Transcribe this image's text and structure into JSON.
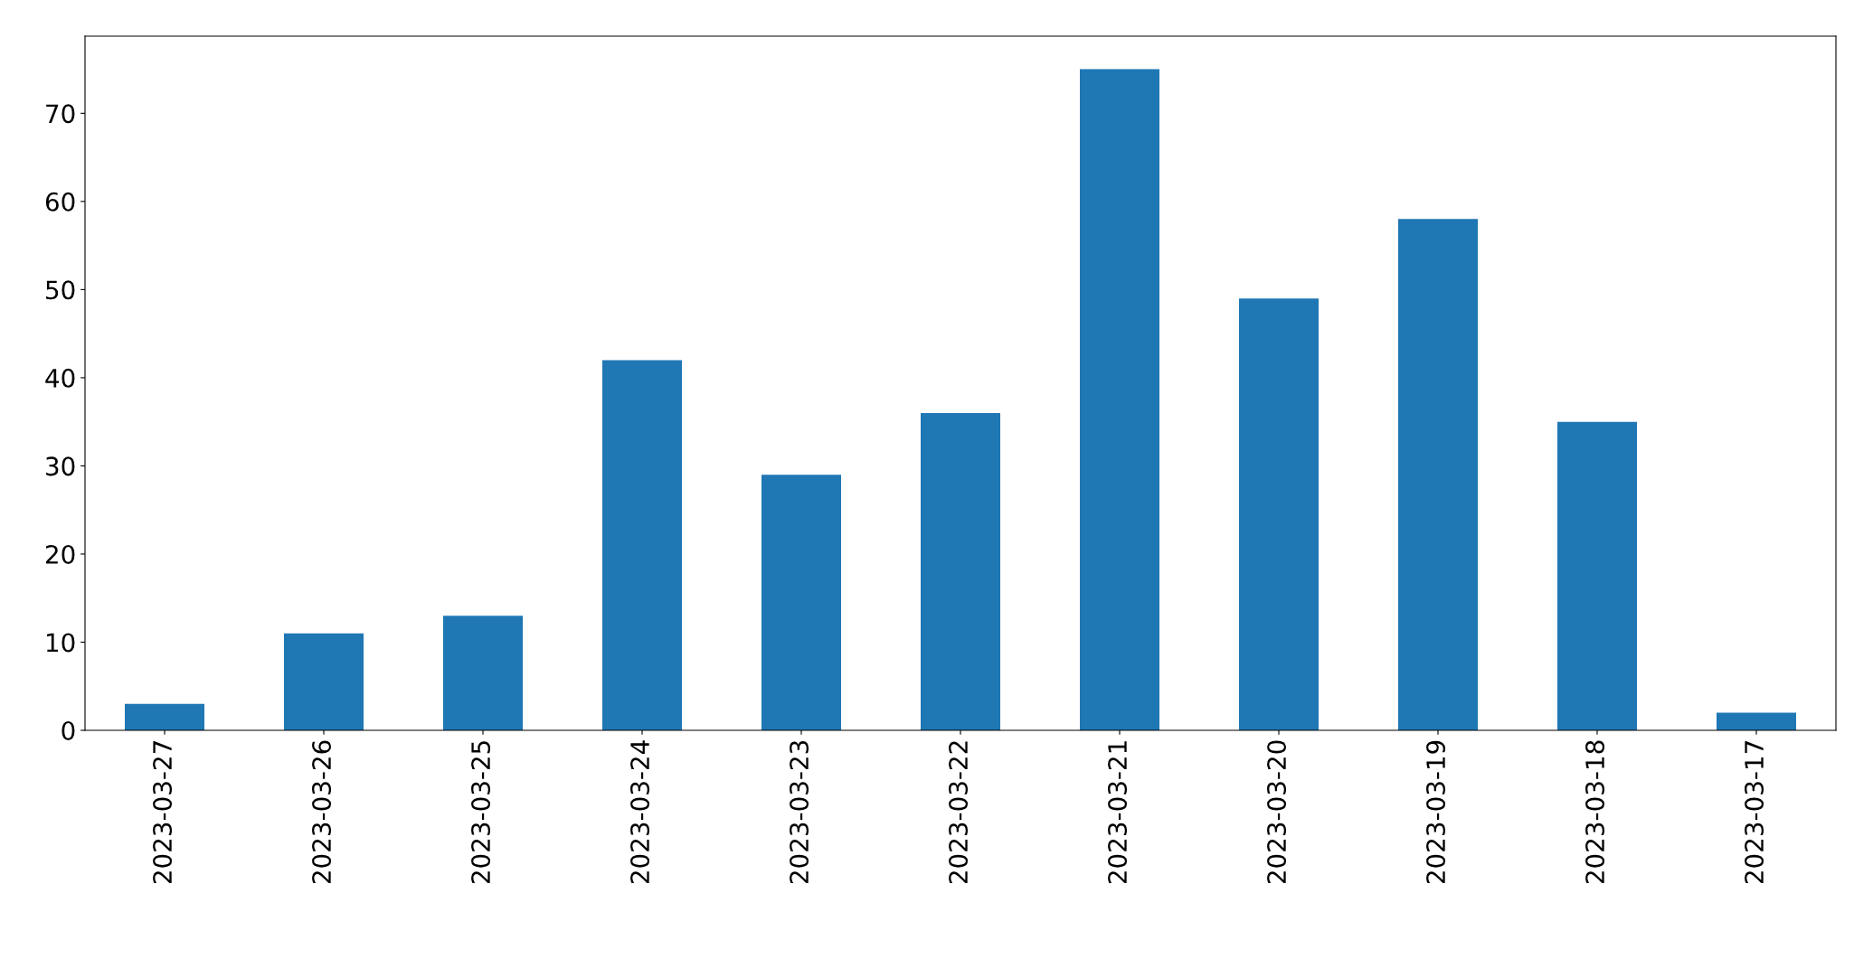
{
  "chart_data": {
    "type": "bar",
    "categories": [
      "2023-03-27",
      "2023-03-26",
      "2023-03-25",
      "2023-03-24",
      "2023-03-23",
      "2023-03-22",
      "2023-03-21",
      "2023-03-20",
      "2023-03-19",
      "2023-03-18",
      "2023-03-17"
    ],
    "values": [
      3,
      11,
      13,
      42,
      29,
      36,
      75,
      49,
      58,
      35,
      2
    ],
    "color": "#1f77b4",
    "ylim": [
      0,
      78.75
    ],
    "yticks": [
      0,
      10,
      20,
      30,
      40,
      50,
      60,
      70
    ],
    "grid": false,
    "legend": false
  }
}
